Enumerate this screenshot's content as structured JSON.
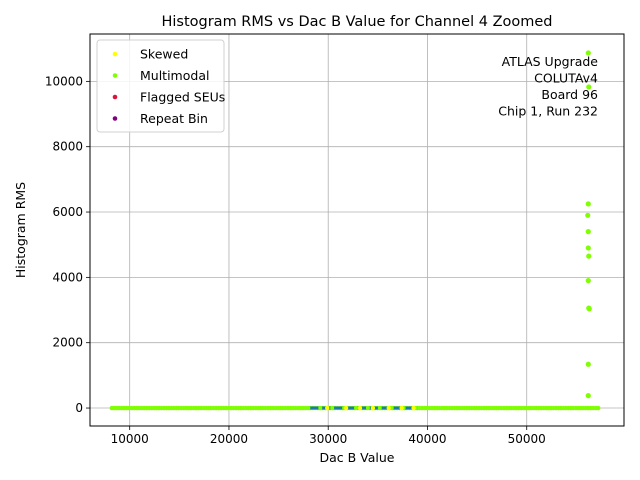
{
  "chart_data": {
    "type": "scatter",
    "title": "Histogram RMS vs Dac B Value for Channel 4 Zoomed",
    "xlabel": "Dac B Value",
    "ylabel": "Histogram RMS",
    "xlim": [
      6000,
      59800
    ],
    "ylim": [
      -550,
      11450
    ],
    "xticks": [
      10000,
      20000,
      30000,
      40000,
      50000
    ],
    "yticks": [
      0,
      2000,
      4000,
      6000,
      8000,
      10000
    ],
    "grid": true,
    "legend_position": "top-left",
    "annotation": [
      "ATLAS Upgrade",
      "COLUTAv4",
      "Board 96",
      "Chip 1, Run 232"
    ],
    "baseline_series": {
      "color": "#1f77b4",
      "x_range": [
        28000,
        39000
      ],
      "y": 0
    },
    "series": [
      {
        "name": "Skewed",
        "color": "#ffff00",
        "points": [
          [
            31800,
            0
          ],
          [
            33200,
            0
          ],
          [
            34500,
            0
          ],
          [
            36100,
            0
          ],
          [
            37400,
            0
          ],
          [
            38600,
            0
          ],
          [
            29900,
            0
          ]
        ]
      },
      {
        "name": "Multimodal",
        "color": "#7fff00",
        "x_range": [
          8200,
          57400
        ],
        "baseline_y": 0,
        "outliers": [
          [
            56200,
            10870
          ],
          [
            56250,
            9830
          ],
          [
            56200,
            6250
          ],
          [
            56150,
            5900
          ],
          [
            56200,
            5400
          ],
          [
            56200,
            4900
          ],
          [
            56250,
            4650
          ],
          [
            56200,
            3900
          ],
          [
            56250,
            3060
          ],
          [
            56300,
            3040
          ],
          [
            56200,
            1340
          ],
          [
            56200,
            380
          ]
        ]
      },
      {
        "name": "Flagged SEUs",
        "color": "#dc143c",
        "points": []
      },
      {
        "name": "Repeat Bin",
        "color": "#800080",
        "points": []
      }
    ]
  }
}
